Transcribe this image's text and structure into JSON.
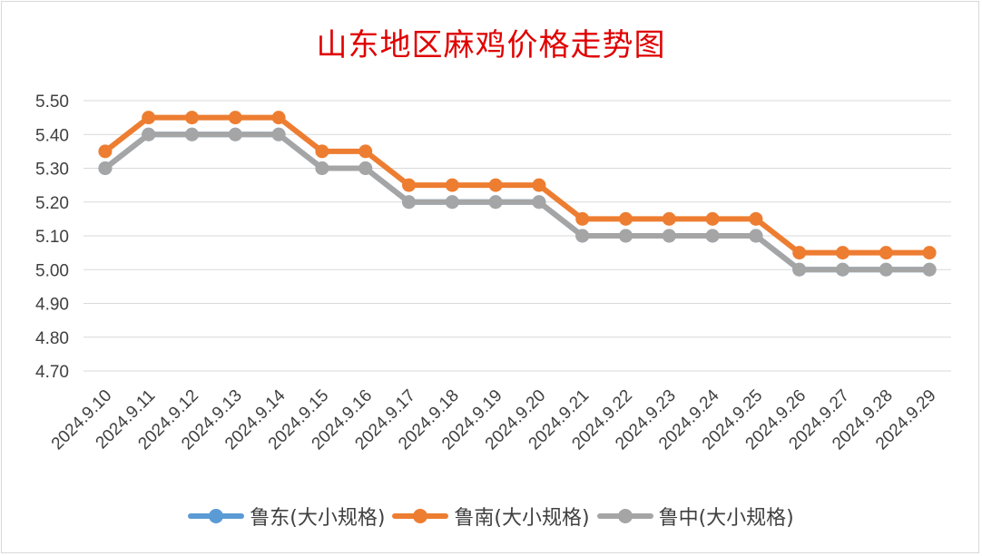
{
  "chart_data": {
    "type": "line",
    "title": "山东地区麻鸡价格走势图",
    "categories": [
      "2024.9.10",
      "2024.9.11",
      "2024.9.12",
      "2024.9.13",
      "2024.9.14",
      "2024.9.15",
      "2024.9.16",
      "2024.9.17",
      "2024.9.18",
      "2024.9.19",
      "2024.9.20",
      "2024.9.21",
      "2024.9.22",
      "2024.9.23",
      "2024.9.24",
      "2024.9.25",
      "2024.9.26",
      "2024.9.27",
      "2024.9.28",
      "2024.9.29"
    ],
    "yticks": [
      "4.70",
      "4.80",
      "4.90",
      "5.00",
      "5.10",
      "5.20",
      "5.30",
      "5.40",
      "5.50"
    ],
    "ylim": [
      4.7,
      5.5
    ],
    "grid": true,
    "legend_position": "bottom",
    "series": [
      {
        "name": "鲁东(大小规格)",
        "color": "#5b9bd5",
        "values": [
          5.3,
          5.4,
          5.4,
          5.4,
          5.4,
          5.3,
          5.3,
          5.2,
          5.2,
          5.2,
          5.2,
          5.1,
          5.1,
          5.1,
          5.1,
          5.1,
          5.0,
          5.0,
          5.0,
          5.0
        ]
      },
      {
        "name": "鲁南(大小规格)",
        "color": "#ed7d31",
        "values": [
          5.35,
          5.45,
          5.45,
          5.45,
          5.45,
          5.35,
          5.35,
          5.25,
          5.25,
          5.25,
          5.25,
          5.15,
          5.15,
          5.15,
          5.15,
          5.15,
          5.05,
          5.05,
          5.05,
          5.05
        ]
      },
      {
        "name": "鲁中(大小规格)",
        "color": "#a5a5a5",
        "values": [
          5.3,
          5.4,
          5.4,
          5.4,
          5.4,
          5.3,
          5.3,
          5.2,
          5.2,
          5.2,
          5.2,
          5.1,
          5.1,
          5.1,
          5.1,
          5.1,
          5.0,
          5.0,
          5.0,
          5.0
        ]
      }
    ]
  }
}
